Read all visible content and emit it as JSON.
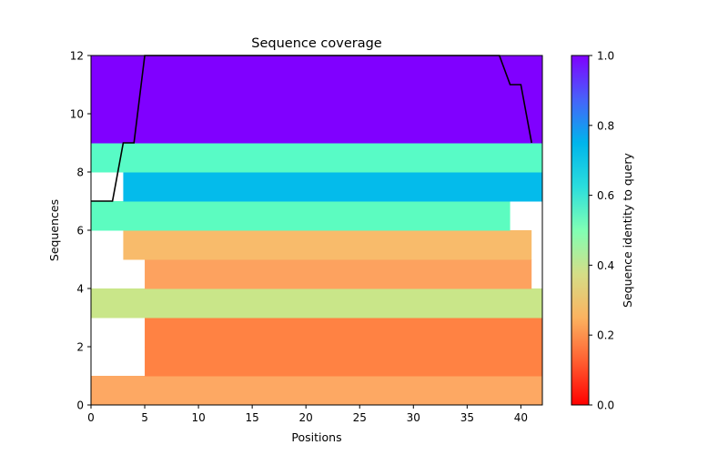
{
  "chart_data": {
    "type": "heatmap",
    "title": "Sequence coverage",
    "xlabel": "Positions",
    "ylabel": "Sequences",
    "xlim": [
      0,
      42
    ],
    "ylim": [
      0,
      12
    ],
    "x_ticks": [
      0,
      5,
      10,
      15,
      20,
      25,
      30,
      35,
      40
    ],
    "y_ticks": [
      0,
      2,
      4,
      6,
      8,
      10,
      12
    ],
    "colorbar": {
      "label": "Sequence identity to query",
      "range": [
        0,
        1
      ],
      "ticks": [
        "0.0",
        "0.2",
        "0.4",
        "0.6",
        "0.8",
        "1.0"
      ],
      "colormap": "rainbow"
    },
    "rows": [
      {
        "row": 0,
        "start": 0,
        "end": 42,
        "identity": 0.22,
        "color": "#fda863"
      },
      {
        "row": 1,
        "start": 5,
        "end": 42,
        "identity": 0.16,
        "color": "#ff8243"
      },
      {
        "row": 2,
        "start": 5,
        "end": 42,
        "identity": 0.16,
        "color": "#ff8243"
      },
      {
        "row": 3,
        "start": 0,
        "end": 42,
        "identity": 0.4,
        "color": "#c9e689"
      },
      {
        "row": 4,
        "start": 5,
        "end": 41,
        "identity": 0.21,
        "color": "#fda25f"
      },
      {
        "row": 5,
        "start": 3,
        "end": 41,
        "identity": 0.25,
        "color": "#f8bb6b"
      },
      {
        "row": 6,
        "start": 0,
        "end": 39,
        "identity": 0.56,
        "color": "#5cfcc0"
      },
      {
        "row": 7,
        "start": 3,
        "end": 42,
        "identity": 0.69,
        "color": "#04bbeb"
      },
      {
        "row": 8,
        "start": 0,
        "end": 42,
        "identity": 0.58,
        "color": "#58fbc6"
      },
      {
        "row": 9,
        "start": 0,
        "end": 42,
        "identity": 1.0,
        "color": "#8000ff"
      },
      {
        "row": 10,
        "start": 0,
        "end": 42,
        "identity": 1.0,
        "color": "#8000ff"
      },
      {
        "row": 11,
        "start": 0,
        "end": 42,
        "identity": 1.0,
        "color": "#8000ff"
      }
    ],
    "coverage_line": {
      "x": [
        0,
        2,
        3,
        4,
        5,
        38,
        39,
        40,
        41
      ],
      "y": [
        7,
        7,
        9,
        9,
        12,
        12,
        11,
        11,
        9
      ]
    }
  }
}
